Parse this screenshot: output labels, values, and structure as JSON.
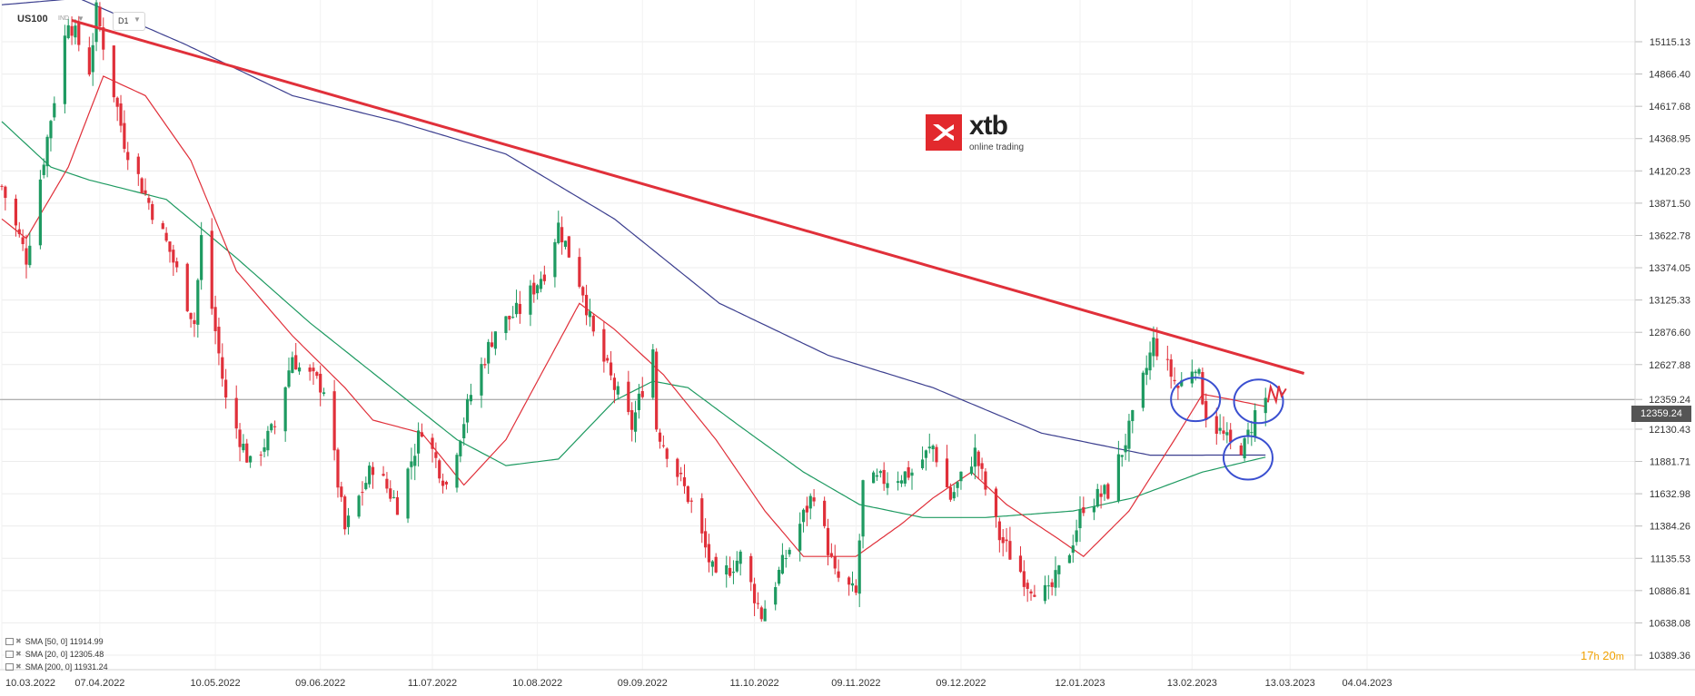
{
  "header": {
    "symbol": "US100",
    "symbol_type": "IND",
    "timeframe": "D1"
  },
  "logo": {
    "text": "xtb",
    "subtitle": "online trading",
    "color": "#e2292d"
  },
  "current_price": "12359.24",
  "timer": {
    "hours": "17",
    "h": "h",
    "minutes": "20",
    "m": "m"
  },
  "indicators": [
    {
      "label": "SMA [50, 0]",
      "value": "11914.99",
      "color": "#1e9a61"
    },
    {
      "label": "SMA [20, 0]",
      "value": "12305.48",
      "color": "#e0303a"
    },
    {
      "label": "SMA [200, 0]",
      "value": "11931.24",
      "color": "#3c3f8f"
    }
  ],
  "chart_data": {
    "type": "candlestick",
    "instrument": "US100",
    "timeframe": "D1",
    "y_ticks": [
      "15115.13",
      "14866.40",
      "14617.68",
      "14368.95",
      "14120.23",
      "13871.50",
      "13622.78",
      "13374.05",
      "13125.33",
      "12876.60",
      "12627.88",
      "12359.24",
      "12130.43",
      "11881.71",
      "11632.98",
      "11384.26",
      "11135.53",
      "10886.81",
      "10638.08",
      "10389.36"
    ],
    "y_range": [
      10389.36,
      15115.13
    ],
    "x_ticks": [
      "10.03.2022",
      "07.04.2022",
      "10.05.2022",
      "09.06.2022",
      "11.07.2022",
      "10.08.2022",
      "09.09.2022",
      "11.10.2022",
      "09.11.2022",
      "09.12.2022",
      "12.01.2023",
      "13.02.2023",
      "13.03.2023",
      "04.04.2023"
    ],
    "x_range": [
      "2022-03-10",
      "2023-04-04"
    ],
    "bullish_color": "#1e9a61",
    "bearish_color": "#e0303a",
    "price_waypoints": [
      [
        "2022-03-10",
        14000
      ],
      [
        "2022-03-17",
        13450
      ],
      [
        "2022-03-29",
        15300
      ],
      [
        "2022-04-04",
        14900
      ],
      [
        "2022-04-06",
        15350
      ],
      [
        "2022-04-14",
        14350
      ],
      [
        "2022-04-19",
        14000
      ],
      [
        "2022-04-27",
        13500
      ],
      [
        "2022-05-04",
        12950
      ],
      [
        "2022-05-06",
        13600
      ],
      [
        "2022-05-13",
        12350
      ],
      [
        "2022-05-20",
        11850
      ],
      [
        "2022-05-27",
        12150
      ],
      [
        "2022-06-01",
        12700
      ],
      [
        "2022-06-03",
        12600
      ],
      [
        "2022-06-10",
        12450
      ],
      [
        "2022-06-16",
        11350
      ],
      [
        "2022-06-24",
        11850
      ],
      [
        "2022-07-01",
        11550
      ],
      [
        "2022-07-08",
        12150
      ],
      [
        "2022-07-15",
        11700
      ],
      [
        "2022-07-22",
        12400
      ],
      [
        "2022-07-29",
        12900
      ],
      [
        "2022-08-05",
        13050
      ],
      [
        "2022-08-12",
        13350
      ],
      [
        "2022-08-16",
        13700
      ],
      [
        "2022-08-23",
        13200
      ],
      [
        "2022-08-26",
        12850
      ],
      [
        "2022-09-01",
        12450
      ],
      [
        "2022-09-06",
        12150
      ],
      [
        "2022-09-12",
        12750
      ],
      [
        "2022-09-13",
        12150
      ],
      [
        "2022-09-23",
        11550
      ],
      [
        "2022-09-30",
        10950
      ],
      [
        "2022-10-07",
        11150
      ],
      [
        "2022-10-13",
        10700
      ],
      [
        "2022-10-20",
        11150
      ],
      [
        "2022-10-28",
        11650
      ],
      [
        "2022-11-03",
        11000
      ],
      [
        "2022-11-09",
        10850
      ],
      [
        "2022-11-11",
        11700
      ],
      [
        "2022-11-18",
        11750
      ],
      [
        "2022-11-25",
        11800
      ],
      [
        "2022-12-01",
        12000
      ],
      [
        "2022-12-06",
        11600
      ],
      [
        "2022-12-13",
        11950
      ],
      [
        "2022-12-20",
        11300
      ],
      [
        "2022-12-28",
        10950
      ],
      [
        "2023-01-03",
        10850
      ],
      [
        "2023-01-09",
        11200
      ],
      [
        "2023-01-13",
        11550
      ],
      [
        "2023-01-20",
        11650
      ],
      [
        "2023-01-27",
        12200
      ],
      [
        "2023-02-02",
        12800
      ],
      [
        "2023-02-09",
        12450
      ],
      [
        "2023-02-14",
        12650
      ],
      [
        "2023-02-17",
        12250
      ],
      [
        "2023-02-24",
        12000
      ],
      [
        "2023-02-28",
        12000
      ],
      [
        "2023-03-03",
        12250
      ],
      [
        "2023-03-06",
        12359
      ]
    ],
    "sma20_waypoints": [
      [
        "2022-03-10",
        13750
      ],
      [
        "2022-03-17",
        13600
      ],
      [
        "2022-03-29",
        14150
      ],
      [
        "2022-04-08",
        14850
      ],
      [
        "2022-04-20",
        14700
      ],
      [
        "2022-05-03",
        14200
      ],
      [
        "2022-05-16",
        13350
      ],
      [
        "2022-06-01",
        12850
      ],
      [
        "2022-06-16",
        12450
      ],
      [
        "2022-06-24",
        12200
      ],
      [
        "2022-07-08",
        12100
      ],
      [
        "2022-07-20",
        11700
      ],
      [
        "2022-08-01",
        12050
      ],
      [
        "2022-08-12",
        12600
      ],
      [
        "2022-08-22",
        13100
      ],
      [
        "2022-09-01",
        12900
      ],
      [
        "2022-09-15",
        12550
      ],
      [
        "2022-09-30",
        12050
      ],
      [
        "2022-10-14",
        11500
      ],
      [
        "2022-10-25",
        11150
      ],
      [
        "2022-11-09",
        11150
      ],
      [
        "2022-11-22",
        11400
      ],
      [
        "2022-12-01",
        11600
      ],
      [
        "2022-12-12",
        11800
      ],
      [
        "2022-12-22",
        11550
      ],
      [
        "2023-01-05",
        11300
      ],
      [
        "2023-01-13",
        11150
      ],
      [
        "2023-01-26",
        11500
      ],
      [
        "2023-02-08",
        12050
      ],
      [
        "2023-02-16",
        12400
      ],
      [
        "2023-02-24",
        12360
      ],
      [
        "2023-03-06",
        12305
      ]
    ],
    "sma50_waypoints": [
      [
        "2022-03-10",
        14500
      ],
      [
        "2022-03-24",
        14150
      ],
      [
        "2022-04-04",
        14050
      ],
      [
        "2022-04-26",
        13900
      ],
      [
        "2022-05-16",
        13450
      ],
      [
        "2022-06-06",
        12950
      ],
      [
        "2022-06-27",
        12500
      ],
      [
        "2022-07-18",
        12050
      ],
      [
        "2022-08-01",
        11850
      ],
      [
        "2022-08-16",
        11900
      ],
      [
        "2022-09-01",
        12350
      ],
      [
        "2022-09-12",
        12500
      ],
      [
        "2022-09-22",
        12450
      ],
      [
        "2022-10-07",
        12150
      ],
      [
        "2022-10-25",
        11800
      ],
      [
        "2022-11-10",
        11550
      ],
      [
        "2022-11-28",
        11450
      ],
      [
        "2022-12-16",
        11450
      ],
      [
        "2023-01-10",
        11500
      ],
      [
        "2023-01-27",
        11600
      ],
      [
        "2023-02-16",
        11800
      ],
      [
        "2023-03-06",
        11915
      ]
    ],
    "sma200_waypoints": [
      [
        "2022-03-10",
        15400
      ],
      [
        "2022-04-01",
        15450
      ],
      [
        "2022-05-01",
        15100
      ],
      [
        "2022-06-01",
        14700
      ],
      [
        "2022-07-01",
        14500
      ],
      [
        "2022-08-01",
        14250
      ],
      [
        "2022-09-01",
        13750
      ],
      [
        "2022-10-01",
        13100
      ],
      [
        "2022-11-01",
        12700
      ],
      [
        "2022-12-01",
        12450
      ],
      [
        "2023-01-01",
        12100
      ],
      [
        "2023-02-01",
        11930
      ],
      [
        "2023-03-06",
        11931
      ]
    ],
    "trendline": {
      "start": [
        "2022-03-30",
        15280
      ],
      "end": [
        "2023-03-17",
        12560
      ],
      "color": "#e0303a"
    },
    "horizontal_line": 12359.24,
    "annotations": [
      {
        "type": "ellipse",
        "center": [
          "2023-02-14",
          12360
        ],
        "color": "#3a4fd0"
      },
      {
        "type": "ellipse",
        "center": [
          "2023-03-04",
          12345
        ],
        "color": "#3a4fd0"
      },
      {
        "type": "ellipse",
        "center": [
          "2023-03-01",
          11910
        ],
        "color": "#3a4fd0"
      },
      {
        "type": "scribble",
        "center": [
          "2023-03-09",
          12400
        ],
        "color": "#e0303a"
      }
    ]
  }
}
